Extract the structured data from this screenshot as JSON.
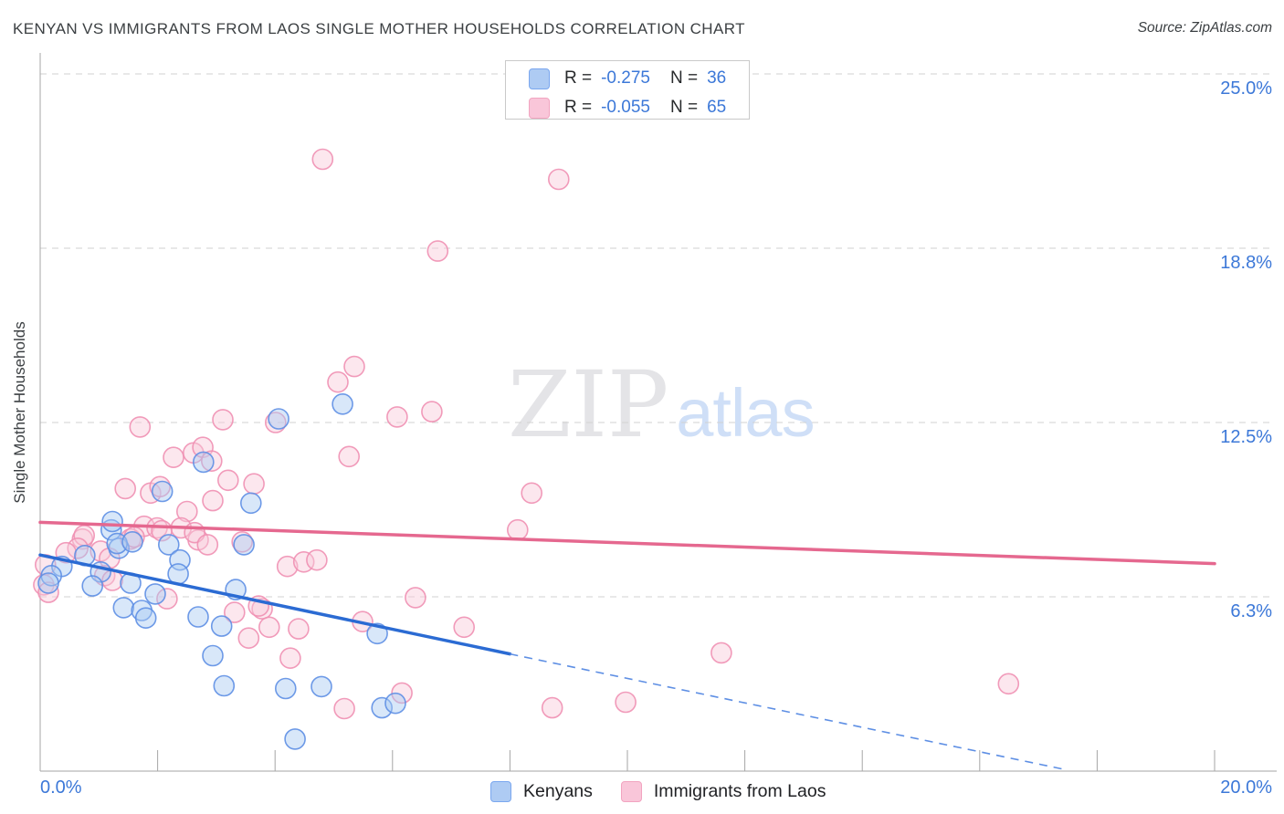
{
  "header": {
    "title": "KENYAN VS IMMIGRANTS FROM LAOS SINGLE MOTHER HOUSEHOLDS CORRELATION CHART",
    "source": "Source: ZipAtlas.com"
  },
  "watermark": {
    "zip": "ZIP",
    "atlas": "atlas"
  },
  "legend_box": {
    "rows": [
      {
        "series": "Kenyans",
        "r_label": "R =",
        "r_value": "-0.275",
        "n_label": "N =",
        "n_value": "36"
      },
      {
        "series": "Immigrants from Laos",
        "r_label": "R =",
        "r_value": "-0.055",
        "n_label": "N =",
        "n_value": "65"
      }
    ]
  },
  "bottom_legend": {
    "items": [
      {
        "label": "Kenyans",
        "color": "blue"
      },
      {
        "label": "Immigrants from Laos",
        "color": "pink"
      }
    ]
  },
  "colors": {
    "kenyans_fill": "#a9c9f1",
    "kenyans_stroke": "#5e8fe4",
    "kenyans_line": "#2b6bd3",
    "laos_fill": "#f9c9da",
    "laos_stroke": "#ef90b2",
    "laos_line": "#e5688f",
    "grid": "#d2d2d2",
    "axis": "#a6a6a6",
    "tick_label_blue": "#3c78d8"
  },
  "chart_data": {
    "type": "scatter",
    "title": "Kenyan vs Immigrants from Laos Single Mother Households",
    "units": "percent",
    "x_axis": {
      "min": 0,
      "max": 20,
      "tick_interval": 2,
      "label_left": "0.0%",
      "label_right": "20.0%"
    },
    "y_axis": {
      "label": "Single Mother Households",
      "min": 0,
      "max": 26,
      "gridlines": [
        {
          "value": 25.0,
          "label": "25.0%"
        },
        {
          "value": 18.75,
          "label": "18.8%"
        },
        {
          "value": 12.5,
          "label": "12.5%"
        },
        {
          "value": 6.25,
          "label": "6.3%"
        }
      ]
    },
    "series": [
      {
        "name": "Immigrants from Laos",
        "R": -0.055,
        "N": 65,
        "trend": {
          "solid": [
            [
              0,
              8.92
            ],
            [
              20,
              7.44
            ]
          ]
        },
        "points": [
          [
            4.81,
            21.94
          ],
          [
            8.83,
            21.22
          ],
          [
            6.77,
            18.65
          ],
          [
            5.35,
            14.51
          ],
          [
            5.07,
            13.95
          ],
          [
            1.7,
            12.34
          ],
          [
            3.11,
            12.6
          ],
          [
            4.01,
            12.5
          ],
          [
            2.27,
            11.25
          ],
          [
            2.61,
            11.41
          ],
          [
            2.77,
            11.61
          ],
          [
            2.92,
            11.12
          ],
          [
            1.45,
            10.13
          ],
          [
            1.88,
            9.97
          ],
          [
            2.04,
            10.2
          ],
          [
            3.2,
            10.43
          ],
          [
            3.64,
            10.3
          ],
          [
            2.94,
            9.7
          ],
          [
            2.5,
            9.31
          ],
          [
            1.77,
            8.78
          ],
          [
            1.99,
            8.72
          ],
          [
            2.4,
            8.72
          ],
          [
            0.72,
            8.32
          ],
          [
            1.54,
            8.32
          ],
          [
            2.69,
            8.29
          ],
          [
            3.44,
            8.22
          ],
          [
            5.26,
            11.28
          ],
          [
            6.08,
            12.7
          ],
          [
            6.67,
            12.89
          ],
          [
            8.37,
            9.97
          ],
          [
            8.13,
            8.65
          ],
          [
            4.21,
            7.34
          ],
          [
            4.49,
            7.5
          ],
          [
            4.71,
            7.57
          ],
          [
            6.39,
            6.22
          ],
          [
            3.78,
            5.82
          ],
          [
            3.9,
            5.16
          ],
          [
            4.4,
            5.1
          ],
          [
            5.49,
            5.36
          ],
          [
            7.22,
            5.16
          ],
          [
            4.26,
            4.05
          ],
          [
            6.16,
            2.8
          ],
          [
            5.18,
            2.24
          ],
          [
            8.72,
            2.27
          ],
          [
            9.97,
            2.47
          ],
          [
            11.6,
            4.24
          ],
          [
            16.49,
            3.13
          ],
          [
            0.75,
            8.45
          ],
          [
            0.64,
            7.99
          ],
          [
            0.44,
            7.83
          ],
          [
            1.03,
            7.89
          ],
          [
            1.18,
            7.63
          ],
          [
            0.09,
            7.4
          ],
          [
            0.06,
            6.68
          ],
          [
            0.14,
            6.41
          ],
          [
            1.1,
            7.01
          ],
          [
            1.23,
            6.84
          ],
          [
            1.6,
            8.39
          ],
          [
            2.07,
            8.62
          ],
          [
            2.63,
            8.55
          ],
          [
            2.85,
            8.12
          ],
          [
            2.16,
            6.18
          ],
          [
            3.31,
            5.69
          ],
          [
            3.72,
            5.92
          ],
          [
            3.55,
            4.77
          ]
        ]
      },
      {
        "name": "Kenyans",
        "R": -0.275,
        "N": 36,
        "trend": {
          "solid": [
            [
              0,
              7.75
            ],
            [
              8.0,
              4.2
            ]
          ],
          "dashed": [
            [
              8.0,
              4.2
            ],
            [
              17.4,
              0.08
            ]
          ]
        },
        "points": [
          [
            1.21,
            8.65
          ],
          [
            1.34,
            7.99
          ],
          [
            3.47,
            8.12
          ],
          [
            2.19,
            8.12
          ],
          [
            0.76,
            7.73
          ],
          [
            0.37,
            7.34
          ],
          [
            0.19,
            7.01
          ],
          [
            0.14,
            6.74
          ],
          [
            1.03,
            7.14
          ],
          [
            0.89,
            6.64
          ],
          [
            1.54,
            6.74
          ],
          [
            1.31,
            8.16
          ],
          [
            1.57,
            8.22
          ],
          [
            2.38,
            7.57
          ],
          [
            2.35,
            7.07
          ],
          [
            1.96,
            6.35
          ],
          [
            1.42,
            5.86
          ],
          [
            1.73,
            5.76
          ],
          [
            1.8,
            5.49
          ],
          [
            2.69,
            5.53
          ],
          [
            3.09,
            5.2
          ],
          [
            3.33,
            6.51
          ],
          [
            2.94,
            4.14
          ],
          [
            3.13,
            3.06
          ],
          [
            4.18,
            2.96
          ],
          [
            4.79,
            3.03
          ],
          [
            4.34,
            1.15
          ],
          [
            5.74,
            4.93
          ],
          [
            5.82,
            2.27
          ],
          [
            6.05,
            2.43
          ],
          [
            5.15,
            13.16
          ],
          [
            4.06,
            12.63
          ],
          [
            2.78,
            11.08
          ],
          [
            2.08,
            10.03
          ],
          [
            3.59,
            9.61
          ],
          [
            1.23,
            8.95
          ]
        ]
      }
    ]
  }
}
